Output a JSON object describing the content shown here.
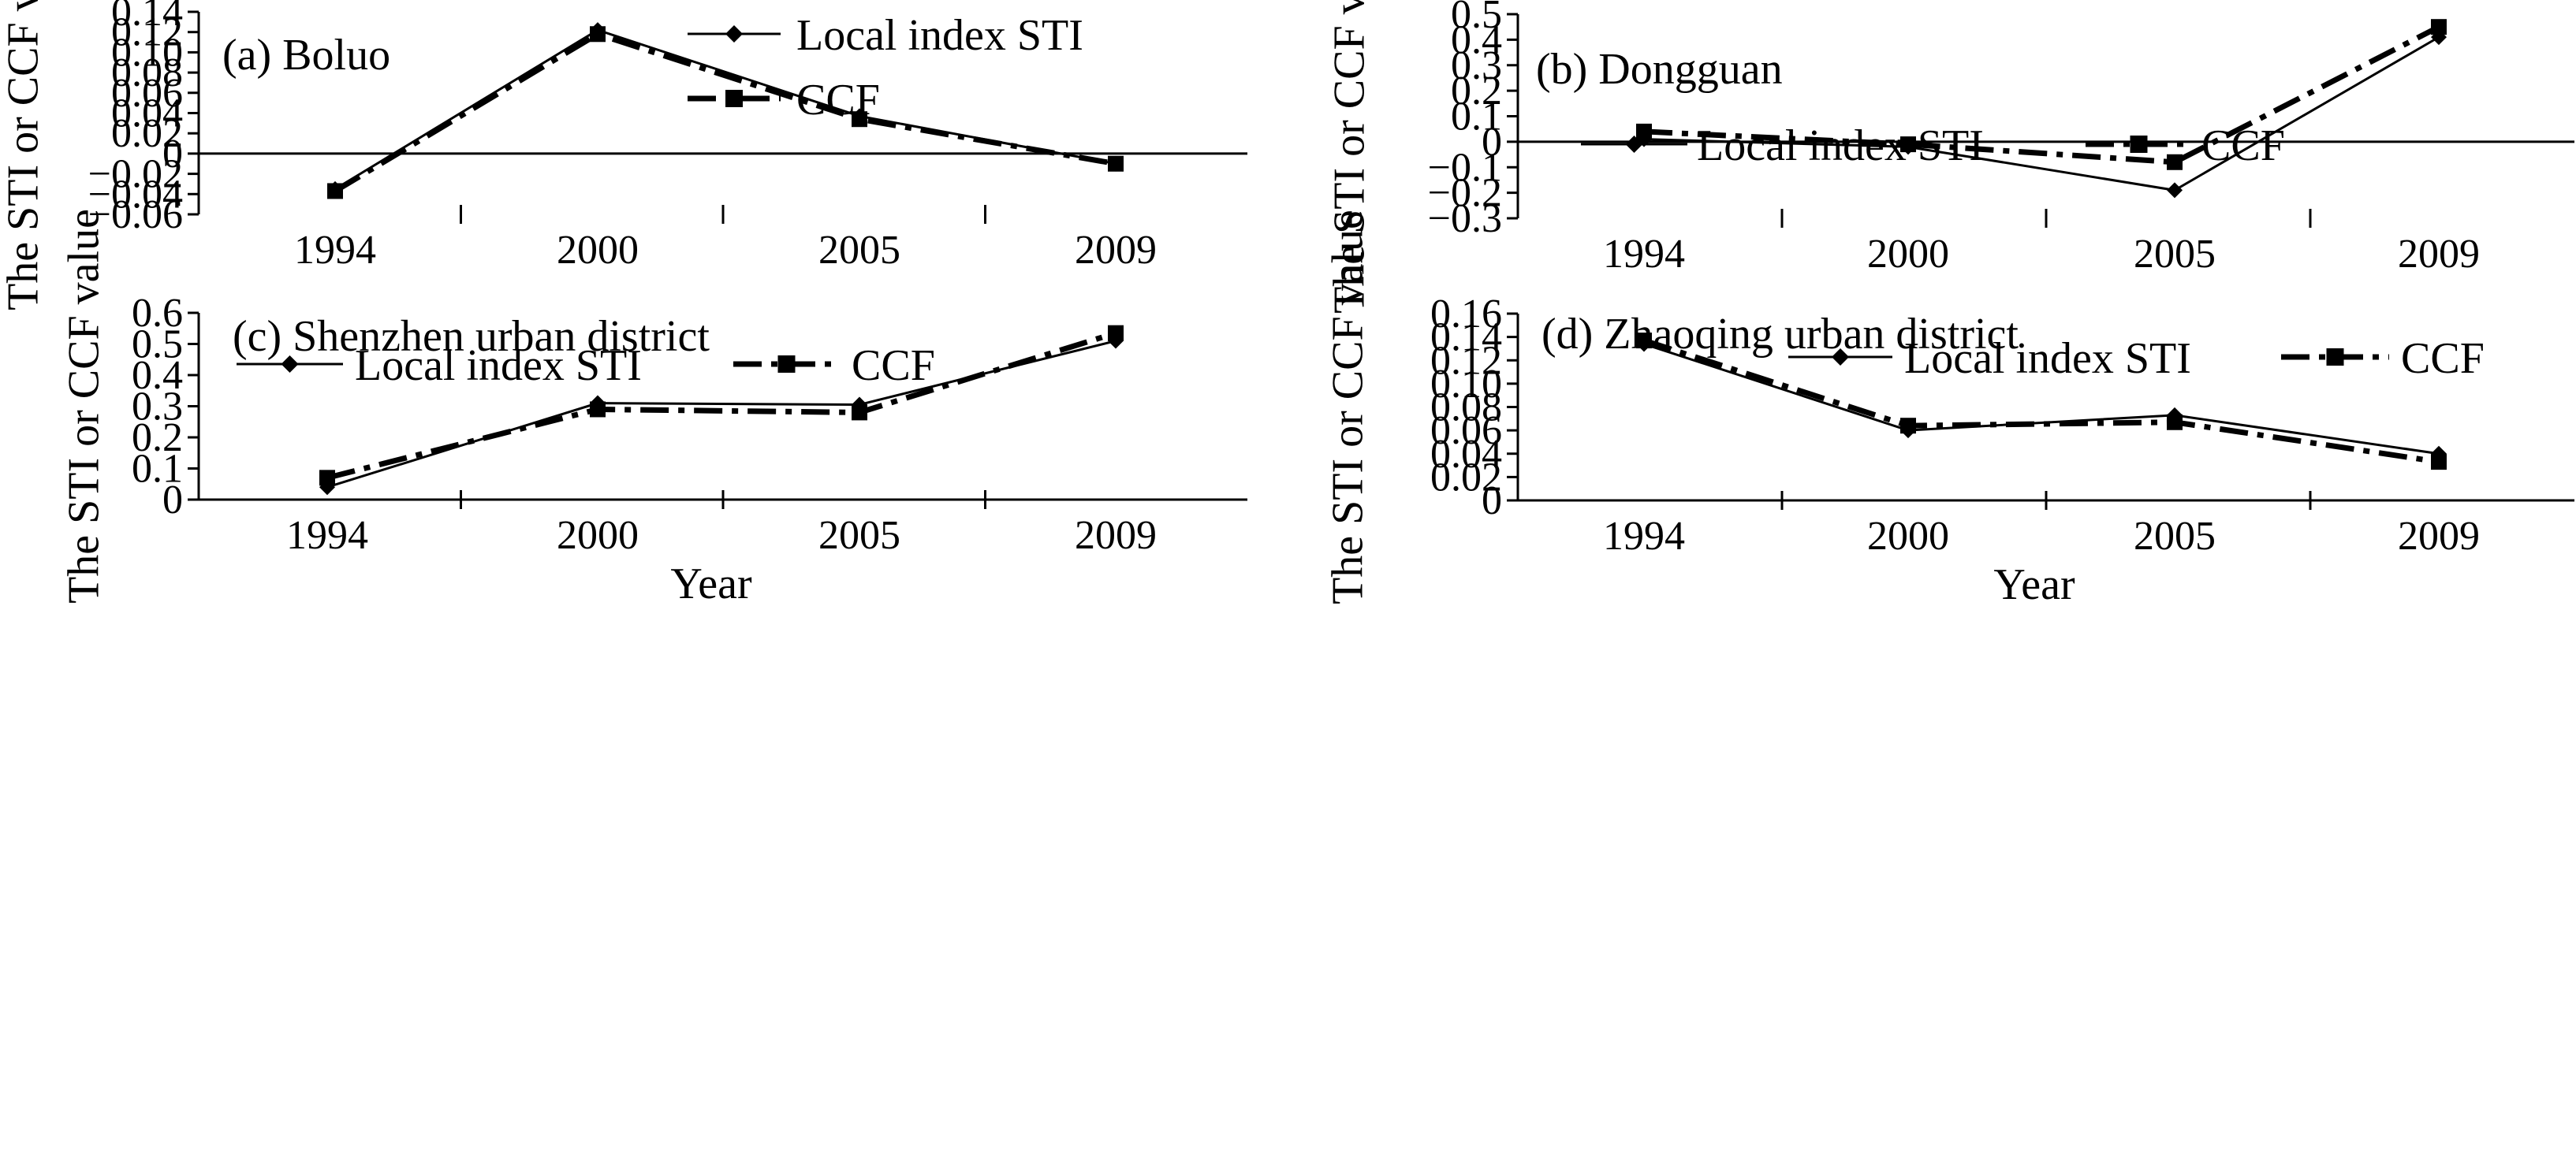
{
  "chart_data": [
    {
      "type": "line",
      "panel_label": "(a) Boluo",
      "categories": [
        "1994",
        "2000",
        "2005",
        "2009"
      ],
      "series": [
        {
          "name": "Local index STI",
          "values": [
            -0.035,
            0.122,
            0.037,
            -0.01
          ]
        },
        {
          "name": "CCF",
          "values": [
            -0.037,
            0.118,
            0.034,
            -0.01
          ]
        }
      ],
      "xlabel": "",
      "ylabel": "The STI or CCF value",
      "ylim": [
        -0.06,
        0.14
      ],
      "yticks": [
        -0.06,
        -0.04,
        -0.02,
        0,
        0.02,
        0.04,
        0.06,
        0.08,
        0.1,
        0.12,
        0.14
      ],
      "ytick_labels": [
        "−0.06",
        "−0.04",
        "−0.02",
        "0",
        "0.02",
        "0.04",
        "0.06",
        "0.08",
        "0.10",
        "0.12",
        "0.14"
      ],
      "legend": {
        "layout": "vertical",
        "position": "top-right"
      },
      "grid": false
    },
    {
      "type": "line",
      "panel_label": "(b) Dongguan",
      "categories": [
        "1994",
        "2000",
        "2005",
        "2009"
      ],
      "series": [
        {
          "name": "Local index STI",
          "values": [
            0.01,
            -0.02,
            -0.19,
            0.41
          ]
        },
        {
          "name": "CCF",
          "values": [
            0.04,
            -0.01,
            -0.08,
            0.45
          ]
        }
      ],
      "xlabel": "",
      "ylabel": "The STI or CCF value",
      "ylim": [
        -0.3,
        0.5
      ],
      "yticks": [
        -0.3,
        -0.2,
        -0.1,
        0,
        0.1,
        0.2,
        0.3,
        0.4,
        0.5
      ],
      "ytick_labels": [
        "−0.3",
        "−0.2",
        "−0.1",
        "0",
        "0.1",
        "0.2",
        "0.3",
        "0.4",
        "0.5"
      ],
      "legend": {
        "layout": "horizontal",
        "position": "top"
      },
      "grid": false
    },
    {
      "type": "line",
      "panel_label": "(c) Shenzhen urban district",
      "categories": [
        "1994",
        "2000",
        "2005",
        "2009"
      ],
      "series": [
        {
          "name": "Local index STI",
          "values": [
            0.04,
            0.31,
            0.305,
            0.51
          ]
        },
        {
          "name": "CCF",
          "values": [
            0.07,
            0.29,
            0.28,
            0.535
          ]
        }
      ],
      "xlabel": "Year",
      "ylabel": "The STI or CCF value",
      "ylim": [
        0,
        0.6
      ],
      "yticks": [
        0,
        0.1,
        0.2,
        0.3,
        0.4,
        0.5,
        0.6
      ],
      "ytick_labels": [
        "0",
        "0.1",
        "0.2",
        "0.3",
        "0.4",
        "0.5",
        "0.6"
      ],
      "legend": {
        "layout": "horizontal",
        "position": "top"
      },
      "grid": false
    },
    {
      "type": "line",
      "panel_label": "(d) Zhaoqing urban district",
      "categories": [
        "1994",
        "2000",
        "2005",
        "2009"
      ],
      "series": [
        {
          "name": "Local index STI",
          "values": [
            0.134,
            0.06,
            0.073,
            0.04
          ]
        },
        {
          "name": "CCF",
          "values": [
            0.137,
            0.064,
            0.067,
            0.033
          ]
        }
      ],
      "xlabel": "Year",
      "ylabel": "The STI or CCF value",
      "ylim": [
        0,
        0.16
      ],
      "yticks": [
        0,
        0.02,
        0.04,
        0.06,
        0.08,
        0.1,
        0.12,
        0.14,
        0.16
      ],
      "ytick_labels": [
        "0",
        "0.02",
        "0.04",
        "0.06",
        "0.08",
        "0.10",
        "0.12",
        "0.14",
        "0.16"
      ],
      "legend": {
        "layout": "horizontal",
        "position": "top"
      },
      "grid": false
    }
  ]
}
